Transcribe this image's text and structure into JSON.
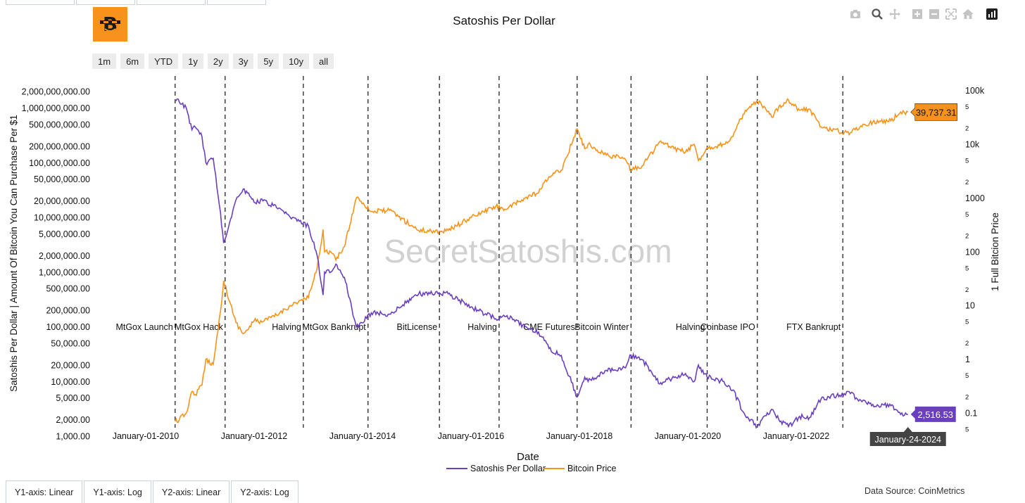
{
  "title": "Satoshis Per Dollar",
  "range_buttons": [
    "1m",
    "6m",
    "YTD",
    "1y",
    "2y",
    "3y",
    "5y",
    "10y",
    "all"
  ],
  "modebar_icons": [
    "camera-icon",
    "zoom-icon",
    "pan-icon",
    "zoom-in-icon",
    "zoom-out-icon",
    "autoscale-icon",
    "reset-axes-icon",
    "plotly-logo-icon"
  ],
  "bottom_tabs": [
    "Y1-axis: Linear",
    "Y1-axis: Log",
    "Y2-axis: Linear",
    "Y2-axis: Log"
  ],
  "data_source": "Data Source: CoinMetrics",
  "watermark": "SecretSatoshis.com",
  "colors": {
    "satoshis": "#6a3fbf",
    "bitcoin": "#f7931a",
    "logo_bg": "#f7931a"
  },
  "chart_data": {
    "type": "line",
    "title": "Satoshis Per Dollar",
    "xlabel": "Date",
    "y1label": "Satoshis Per Dollar | Amount Of Bitcoin You Can Purchase Per $1",
    "y2label": "1 Full Bitcion Price",
    "y1_scale": "log",
    "y2_scale": "log",
    "y1_range": [
      1000,
      2700000000
    ],
    "y2_range": [
      0.037,
      130000
    ],
    "grid": false,
    "legend_placement": "bottom-center",
    "x_ticks": [
      "January-01-2010",
      "January-01-2012",
      "January-01-2014",
      "January-01-2016",
      "January-01-2018",
      "January-01-2020",
      "January-01-2022"
    ],
    "y1_ticks": [
      "1,000.00",
      "2,000.00",
      "5,000.00",
      "10,000.00",
      "20,000.00",
      "50,000.00",
      "100,000.00",
      "200,000.00",
      "500,000.00",
      "1,000,000.00",
      "2,000,000.00",
      "5,000,000.00",
      "10,000,000.00",
      "20,000,000.00",
      "50,000,000.00",
      "100,000,000.00",
      "200,000,000.00",
      "500,000,000.00",
      "1,000,000,000.00",
      "2,000,000,000.00"
    ],
    "y2_ticks": [
      "5",
      "0.1",
      "2",
      "5",
      "1",
      "2",
      "5",
      "10",
      "2",
      "5",
      "100",
      "2",
      "5",
      "1000",
      "2",
      "5",
      "10k",
      "2",
      "5",
      "100k"
    ],
    "series": [
      {
        "name": "Satoshis Per Dollar",
        "x": [
          "2010-07-18",
          "2010-08-15",
          "2010-10-01",
          "2010-11-08",
          "2010-12-01",
          "2011-01-15",
          "2011-02-10",
          "2011-04-01",
          "2011-05-20",
          "2011-06-10",
          "2011-07-20",
          "2011-09-01",
          "2011-10-20",
          "2011-11-18",
          "2012-01-01",
          "2012-03-01",
          "2012-06-01",
          "2012-09-01",
          "2013-01-01",
          "2013-03-01",
          "2013-04-10",
          "2013-04-20",
          "2013-06-01",
          "2013-07-05",
          "2013-09-01",
          "2013-11-20",
          "2013-12-05",
          "2014-03-01",
          "2014-07-01",
          "2015-01-14",
          "2015-06-01",
          "2015-08-01",
          "2016-01-01",
          "2016-06-17",
          "2016-09-01",
          "2017-01-01",
          "2017-04-01",
          "2017-06-10",
          "2017-09-01",
          "2017-12-17",
          "2018-02-06",
          "2018-03-01",
          "2018-07-01",
          "2018-11-01",
          "2018-12-15",
          "2019-03-01",
          "2019-06-26",
          "2019-09-01",
          "2019-12-17",
          "2020-02-13",
          "2020-03-13",
          "2020-05-11",
          "2020-09-01",
          "2020-11-01",
          "2021-01-08",
          "2021-04-14",
          "2021-07-20",
          "2021-09-06",
          "2021-11-10",
          "2022-01-24",
          "2022-04-01",
          "2022-06-18",
          "2022-11-21",
          "2023-01-01",
          "2023-03-13",
          "2023-06-01",
          "2023-10-01",
          "2023-12-06",
          "2024-01-24"
        ],
        "values": [
          1400000000,
          1300000000,
          1000000000,
          400000000,
          450000000,
          300000000,
          100000000,
          120000000,
          12000000,
          3400000,
          8000000,
          21000000,
          33000000,
          28000000,
          19000000,
          20000000,
          15000000,
          10000000,
          7000000,
          2000000,
          380000,
          1000000,
          1000000,
          1400000,
          800000,
          100000,
          100000,
          180000,
          170000,
          400000,
          420000,
          400000,
          230000,
          140000,
          160000,
          100000,
          80000,
          40000,
          30000,
          5200,
          12000,
          10000,
          16000,
          18000,
          30000,
          25000,
          9000,
          11000,
          14000,
          10000,
          20000,
          12000,
          10000,
          7000,
          2800,
          1500,
          3100,
          2000,
          1500,
          2300,
          2200,
          4800,
          6000,
          6000,
          4500,
          3800,
          3600,
          2500,
          2516.53
        ]
      },
      {
        "name": "Bitcoin Price",
        "x": [
          "2010-07-18",
          "2010-08-15",
          "2010-10-01",
          "2010-11-08",
          "2010-12-01",
          "2011-01-15",
          "2011-02-10",
          "2011-04-01",
          "2011-05-20",
          "2011-06-10",
          "2011-07-20",
          "2011-09-01",
          "2011-10-20",
          "2011-11-18",
          "2012-01-01",
          "2012-03-01",
          "2012-06-01",
          "2012-09-01",
          "2013-01-01",
          "2013-03-01",
          "2013-04-10",
          "2013-04-20",
          "2013-06-01",
          "2013-07-05",
          "2013-09-01",
          "2013-11-20",
          "2013-12-05",
          "2014-03-01",
          "2014-07-01",
          "2015-01-14",
          "2015-06-01",
          "2015-08-01",
          "2016-01-01",
          "2016-06-17",
          "2016-09-01",
          "2017-01-01",
          "2017-04-01",
          "2017-06-10",
          "2017-09-01",
          "2017-12-17",
          "2018-02-06",
          "2018-03-01",
          "2018-07-01",
          "2018-11-01",
          "2018-12-15",
          "2019-03-01",
          "2019-06-26",
          "2019-09-01",
          "2019-12-17",
          "2020-02-13",
          "2020-03-13",
          "2020-05-11",
          "2020-09-01",
          "2020-11-01",
          "2021-01-08",
          "2021-04-14",
          "2021-07-20",
          "2021-09-06",
          "2021-11-10",
          "2022-01-24",
          "2022-04-01",
          "2022-06-18",
          "2022-11-21",
          "2023-01-01",
          "2023-03-13",
          "2023-06-01",
          "2023-10-01",
          "2023-12-06",
          "2024-01-24"
        ],
        "values": [
          0.07,
          0.075,
          0.1,
          0.25,
          0.22,
          0.33,
          1,
          0.8,
          8,
          29,
          12,
          4.8,
          3,
          3.5,
          5.2,
          5,
          6.6,
          10,
          14,
          50,
          260,
          100,
          100,
          70,
          125,
          1000,
          1000,
          560,
          590,
          250,
          240,
          250,
          430,
          700,
          620,
          1000,
          1250,
          2500,
          3300,
          19300,
          8300,
          10000,
          6300,
          5500,
          3300,
          4000,
          11100,
          9100,
          7100,
          10000,
          5000,
          8600,
          10000,
          14000,
          36000,
          64000,
          32000,
          50000,
          67000,
          43000,
          45000,
          21000,
          16500,
          16500,
          22000,
          26000,
          27500,
          40000,
          39737.31
        ]
      }
    ],
    "events": [
      {
        "label": "MtGox Launch",
        "date": "2010-07-18"
      },
      {
        "label": "MtGox Hack",
        "date": "2011-06-20"
      },
      {
        "label": "Halving",
        "date": "2012-11-28"
      },
      {
        "label": "MtGox Bankrupt",
        "date": "2014-02-07"
      },
      {
        "label": "BitLicense",
        "date": "2015-06-03"
      },
      {
        "label": "Halving",
        "date": "2016-07-09"
      },
      {
        "label": "CME Futures",
        "date": "2017-12-17"
      },
      {
        "label": "Bitcoin Winter",
        "date": "2018-12-15"
      },
      {
        "label": "Halving",
        "date": "2020-05-11"
      },
      {
        "label": "Coinbase IPO",
        "date": "2021-04-14"
      },
      {
        "label": "FTX Bankrupt",
        "date": "2022-11-11"
      }
    ],
    "last_labels": {
      "bitcoin": "39,737.31",
      "satoshis": "2,516.53",
      "date": "January-24-2024"
    }
  }
}
